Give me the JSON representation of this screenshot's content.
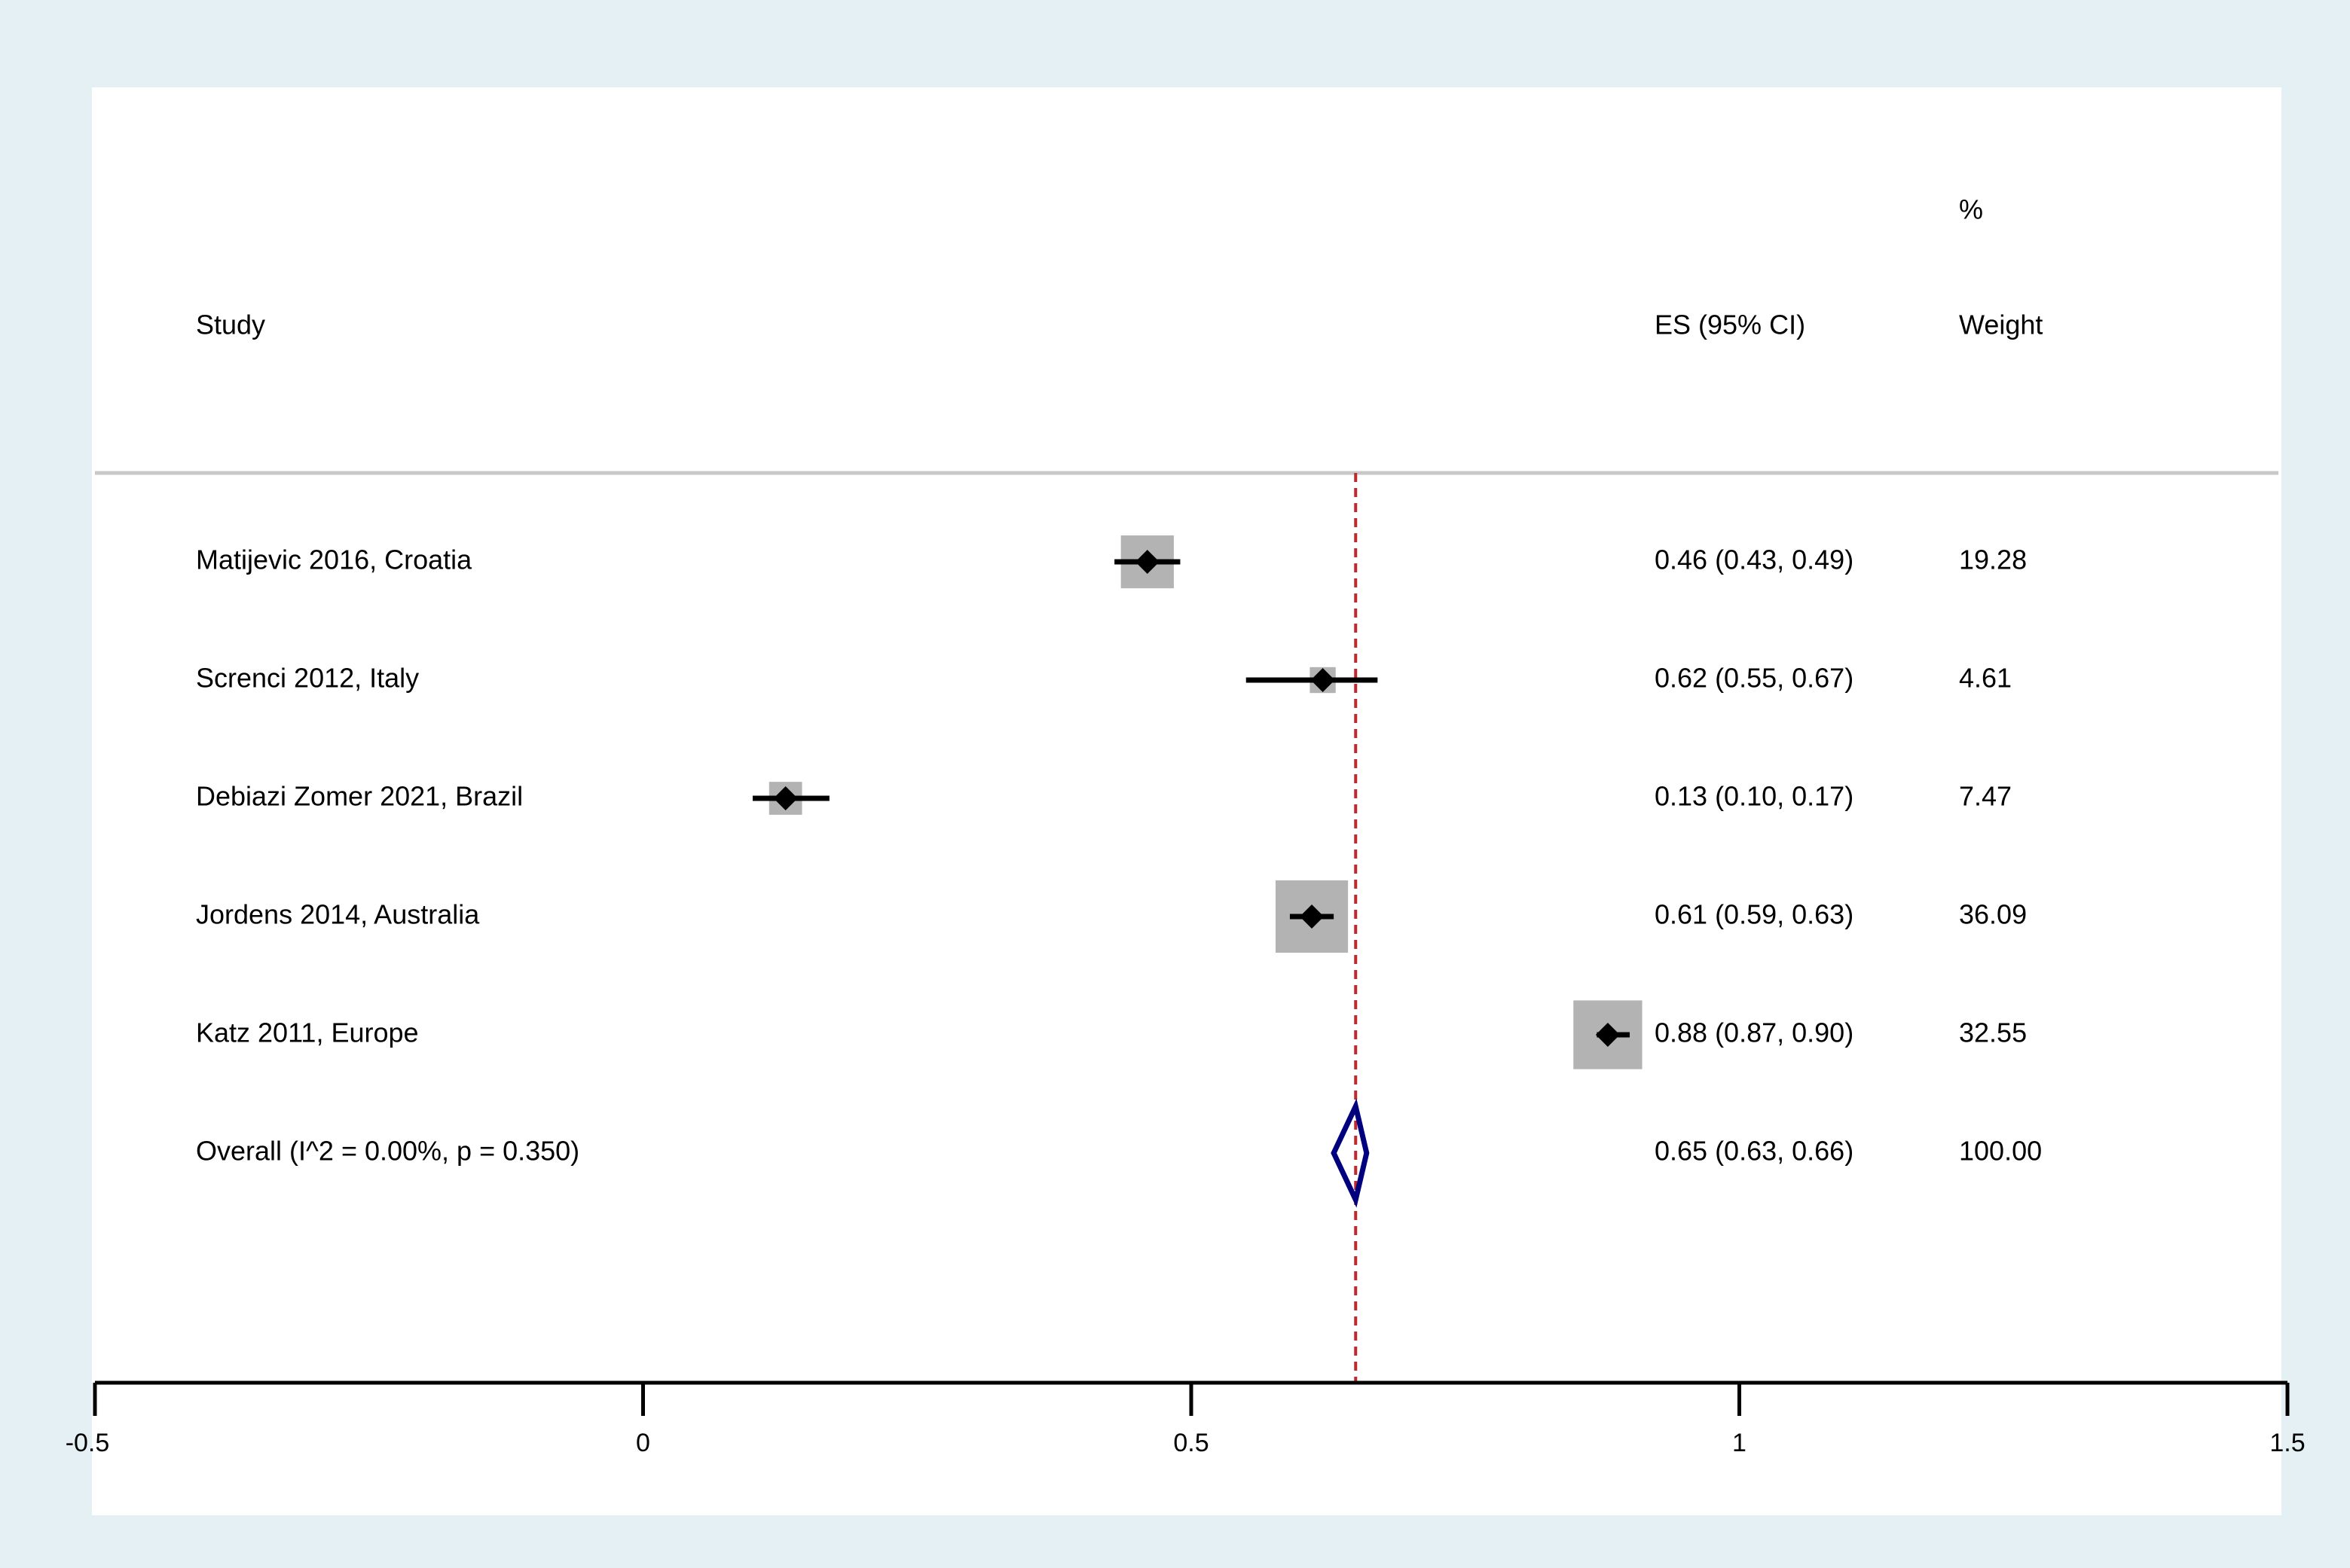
{
  "colors": {
    "outer_background": "#e5f0f4",
    "plot_background": "#ffffff",
    "weight_box": "#b3b3b3",
    "point_and_ci": "#000000",
    "overall_diamond": "#00007f",
    "reference_line": "#c0282d",
    "header_rule": "#c8c8c8",
    "axis": "#000000"
  },
  "headers": {
    "study": "Study",
    "es": "ES (95% CI)",
    "weight_top": "%",
    "weight": "Weight"
  },
  "chart_data": {
    "type": "forest",
    "xlim": [
      -0.5,
      1.5
    ],
    "xticks": [
      -0.5,
      0,
      0.5,
      1,
      1.5
    ],
    "xtick_labels": [
      "-0.5",
      "0",
      "0.5",
      "1",
      "1.5"
    ],
    "reference_line": 0.65,
    "studies": [
      {
        "label": "Matijevic 2016, Croatia",
        "es": 0.46,
        "lo": 0.43,
        "hi": 0.49,
        "es_text": "0.46 (0.43, 0.49)",
        "weight": 19.28,
        "weight_text": "19.28"
      },
      {
        "label": "Screnci 2012, Italy",
        "es": 0.62,
        "lo": 0.55,
        "hi": 0.67,
        "es_text": "0.62 (0.55, 0.67)",
        "weight": 4.61,
        "weight_text": "4.61"
      },
      {
        "label": "Debiazi Zomer 2021, Brazil",
        "es": 0.13,
        "lo": 0.1,
        "hi": 0.17,
        "es_text": "0.13 (0.10, 0.17)",
        "weight": 7.47,
        "weight_text": "7.47"
      },
      {
        "label": "Jordens 2014, Australia",
        "es": 0.61,
        "lo": 0.59,
        "hi": 0.63,
        "es_text": "0.61 (0.59, 0.63)",
        "weight": 36.09,
        "weight_text": "36.09"
      },
      {
        "label": "Katz 2011, Europe",
        "es": 0.88,
        "lo": 0.87,
        "hi": 0.9,
        "es_text": "0.88 (0.87, 0.90)",
        "weight": 32.55,
        "weight_text": "32.55"
      }
    ],
    "overall": {
      "label": "Overall  (I^2 = 0.00%, p = 0.350)",
      "es": 0.65,
      "lo": 0.63,
      "hi": 0.66,
      "es_text": "0.65 (0.63, 0.66)",
      "weight_text": "100.00"
    }
  }
}
